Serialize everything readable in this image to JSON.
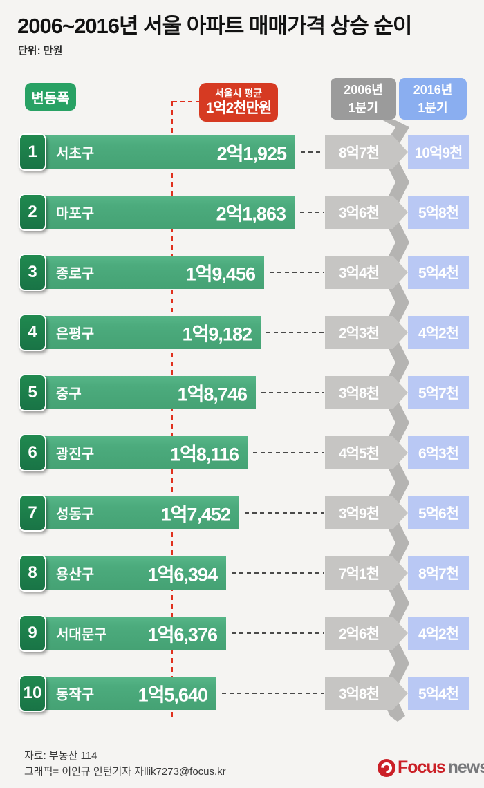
{
  "title": "2006~2016년 서울 아파트 매매가격 상승 순이",
  "unit_label": "단위: 만원",
  "legend": {
    "change_badge": "변동폭",
    "seoul_avg_line1": "서울시 평균",
    "seoul_avg_line2": "1억2천만원"
  },
  "columns": {
    "y2006": {
      "line1": "2006년",
      "line2": "1분기"
    },
    "y2016": {
      "line1": "2016년",
      "line2": "1분기"
    }
  },
  "rows": [
    {
      "rank": "1",
      "district": "서초구",
      "change_label": "2억1,925",
      "change_value": 21925,
      "price_2006": "8억7천",
      "price_2016": "10억9천"
    },
    {
      "rank": "2",
      "district": "마포구",
      "change_label": "2억1,863",
      "change_value": 21863,
      "price_2006": "3억6천",
      "price_2016": "5억8천"
    },
    {
      "rank": "3",
      "district": "종로구",
      "change_label": "1억9,456",
      "change_value": 19456,
      "price_2006": "3억4천",
      "price_2016": "5억4천"
    },
    {
      "rank": "4",
      "district": "은평구",
      "change_label": "1억9,182",
      "change_value": 19182,
      "price_2006": "2억3천",
      "price_2016": "4억2천"
    },
    {
      "rank": "5",
      "district": "중구",
      "change_label": "1억8,746",
      "change_value": 18746,
      "price_2006": "3억8천",
      "price_2016": "5억7천"
    },
    {
      "rank": "6",
      "district": "광진구",
      "change_label": "1억8,116",
      "change_value": 18116,
      "price_2006": "4억5천",
      "price_2016": "6억3천"
    },
    {
      "rank": "7",
      "district": "성동구",
      "change_label": "1억7,452",
      "change_value": 17452,
      "price_2006": "3억9천",
      "price_2016": "5억6천"
    },
    {
      "rank": "8",
      "district": "용산구",
      "change_label": "1억6,394",
      "change_value": 16394,
      "price_2006": "7억1천",
      "price_2016": "8억7천"
    },
    {
      "rank": "9",
      "district": "서대문구",
      "change_label": "1억6,376",
      "change_value": 16376,
      "price_2006": "2억6천",
      "price_2016": "4억2천"
    },
    {
      "rank": "10",
      "district": "동작구",
      "change_label": "1억5,640",
      "change_value": 15640,
      "price_2006": "3억8천",
      "price_2016": "5억4천"
    }
  ],
  "footer": {
    "source": "자료: 부동산 114",
    "credit": "그래픽= 이인규 인턴기자 자llik7273@focus.kr",
    "logo_brand": "Focus",
    "logo_suffix": "news"
  },
  "colors": {
    "bg": "#f5f4f2",
    "bar_green": "#4cab7d",
    "rank_green": "#197446",
    "badge_green": "#28a164",
    "red": "#d63a22",
    "red_line": "#e0301e",
    "header_gray": "#9b9b9b",
    "header_blue": "#8aaef0",
    "box_gray": "#c6c5c3",
    "box_blue": "#b9c8f4",
    "ribbon": "#b5b4b2",
    "logo_red": "#cb2027",
    "logo_gray": "#77787b"
  },
  "chart_data": {
    "type": "bar",
    "orientation": "horizontal",
    "title": "2006~2016년 서울 아파트 매매가격 상승 순이",
    "unit": "만원",
    "categories": [
      "서초구",
      "마포구",
      "종로구",
      "은평구",
      "중구",
      "광진구",
      "성동구",
      "용산구",
      "서대문구",
      "동작구"
    ],
    "series": [
      {
        "name": "변동폭",
        "values": [
          21925,
          21863,
          19456,
          19182,
          18746,
          18116,
          17452,
          16394,
          16376,
          15640
        ],
        "labels": [
          "2억1,925",
          "2억1,863",
          "1억9,456",
          "1억9,182",
          "1억8,746",
          "1억8,116",
          "1억7,452",
          "1억6,394",
          "1억6,376",
          "1억5,640"
        ]
      },
      {
        "name": "2006년 1분기",
        "labels": [
          "8억7천",
          "3억6천",
          "3억4천",
          "2억3천",
          "3억8천",
          "4억5천",
          "3억9천",
          "7억1천",
          "2억6천",
          "3억8천"
        ]
      },
      {
        "name": "2016년 1분기",
        "labels": [
          "10억9천",
          "5억8천",
          "5억4천",
          "4억2천",
          "5억7천",
          "6억3천",
          "5억6천",
          "8억7천",
          "4억2천",
          "5억4천"
        ]
      }
    ],
    "annotations": {
      "seoul_average_label": "서울시 평균 1억2천만원",
      "seoul_average_value": 12000
    },
    "xmax": 21925,
    "legend_position": "top",
    "grid": false
  }
}
